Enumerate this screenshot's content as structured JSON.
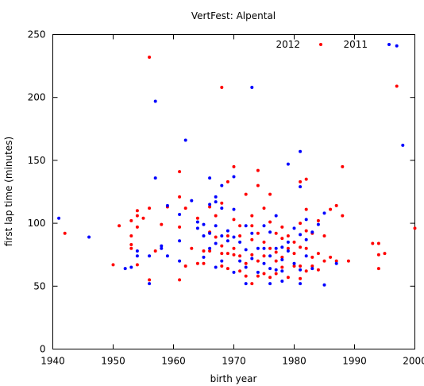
{
  "chart_data": {
    "type": "scatter",
    "title": "VertFest: Alpental",
    "xlabel": "birth year",
    "ylabel": "first lap time (minutes)",
    "xlim": [
      1940,
      2000
    ],
    "ylim": [
      0,
      250
    ],
    "xticks": [
      1940,
      1950,
      1960,
      1970,
      1980,
      1990,
      2000
    ],
    "yticks": [
      0,
      50,
      100,
      150,
      200,
      250
    ],
    "grid": false,
    "legend_position": "top-right",
    "series": [
      {
        "name": "2012",
        "color": "#ff0000",
        "points": [
          [
            1942,
            92
          ],
          [
            1950,
            67
          ],
          [
            1951,
            98
          ],
          [
            1953,
            102
          ],
          [
            1953,
            90
          ],
          [
            1953,
            80
          ],
          [
            1953,
            83
          ],
          [
            1954,
            110
          ],
          [
            1954,
            106
          ],
          [
            1954,
            97
          ],
          [
            1954,
            67
          ],
          [
            1955,
            104
          ],
          [
            1956,
            232
          ],
          [
            1956,
            112
          ],
          [
            1956,
            55
          ],
          [
            1957,
            78
          ],
          [
            1958,
            99
          ],
          [
            1959,
            113
          ],
          [
            1961,
            141
          ],
          [
            1961,
            121
          ],
          [
            1961,
            97
          ],
          [
            1961,
            55
          ],
          [
            1962,
            112
          ],
          [
            1962,
            66
          ],
          [
            1963,
            80
          ],
          [
            1964,
            104
          ],
          [
            1964,
            68
          ],
          [
            1965,
            78
          ],
          [
            1965,
            68
          ],
          [
            1966,
            113
          ],
          [
            1966,
            93
          ],
          [
            1966,
            78
          ],
          [
            1967,
            106
          ],
          [
            1967,
            89
          ],
          [
            1968,
            208
          ],
          [
            1968,
            116
          ],
          [
            1968,
            82
          ],
          [
            1968,
            76
          ],
          [
            1968,
            66
          ],
          [
            1969,
            133
          ],
          [
            1969,
            90
          ],
          [
            1969,
            76
          ],
          [
            1969,
            64
          ],
          [
            1970,
            145
          ],
          [
            1970,
            103
          ],
          [
            1970,
            80
          ],
          [
            1970,
            75
          ],
          [
            1971,
            98
          ],
          [
            1971,
            90
          ],
          [
            1971,
            74
          ],
          [
            1971,
            62
          ],
          [
            1972,
            123
          ],
          [
            1972,
            68
          ],
          [
            1972,
            58
          ],
          [
            1973,
            106
          ],
          [
            1973,
            98
          ],
          [
            1973,
            87
          ],
          [
            1973,
            75
          ],
          [
            1973,
            52
          ],
          [
            1974,
            142
          ],
          [
            1974,
            130
          ],
          [
            1974,
            92
          ],
          [
            1974,
            70
          ],
          [
            1974,
            58
          ],
          [
            1975,
            112
          ],
          [
            1975,
            85
          ],
          [
            1975,
            74
          ],
          [
            1975,
            60
          ],
          [
            1976,
            123
          ],
          [
            1976,
            101
          ],
          [
            1976,
            80
          ],
          [
            1976,
            57
          ],
          [
            1977,
            92
          ],
          [
            1977,
            77
          ],
          [
            1977,
            70
          ],
          [
            1977,
            60
          ],
          [
            1978,
            97
          ],
          [
            1978,
            88
          ],
          [
            1978,
            73
          ],
          [
            1978,
            65
          ],
          [
            1979,
            90
          ],
          [
            1979,
            80
          ],
          [
            1979,
            57
          ],
          [
            1980,
            85
          ],
          [
            1980,
            76
          ],
          [
            1980,
            66
          ],
          [
            1981,
            133
          ],
          [
            1981,
            100
          ],
          [
            1981,
            81
          ],
          [
            1981,
            66
          ],
          [
            1981,
            56
          ],
          [
            1982,
            135
          ],
          [
            1982,
            111
          ],
          [
            1982,
            94
          ],
          [
            1982,
            80
          ],
          [
            1982,
            62
          ],
          [
            1983,
            92
          ],
          [
            1983,
            73
          ],
          [
            1983,
            66
          ],
          [
            1984,
            102
          ],
          [
            1984,
            76
          ],
          [
            1984,
            63
          ],
          [
            1985,
            90
          ],
          [
            1985,
            70
          ],
          [
            1986,
            111
          ],
          [
            1986,
            73
          ],
          [
            1987,
            114
          ],
          [
            1987,
            70
          ],
          [
            1988,
            145
          ],
          [
            1988,
            106
          ],
          [
            1989,
            70
          ],
          [
            1993,
            84
          ],
          [
            1994,
            84
          ],
          [
            1994,
            75
          ],
          [
            1994,
            64
          ],
          [
            1995,
            76
          ],
          [
            1997,
            209
          ],
          [
            2000,
            96
          ]
        ]
      },
      {
        "name": "2011",
        "color": "#0000ff",
        "points": [
          [
            1941,
            104
          ],
          [
            1946,
            89
          ],
          [
            1952,
            64
          ],
          [
            1953,
            65
          ],
          [
            1954,
            78
          ],
          [
            1954,
            74
          ],
          [
            1956,
            74
          ],
          [
            1956,
            52
          ],
          [
            1957,
            197
          ],
          [
            1957,
            136
          ],
          [
            1958,
            82
          ],
          [
            1958,
            80
          ],
          [
            1959,
            114
          ],
          [
            1959,
            74
          ],
          [
            1961,
            107
          ],
          [
            1961,
            86
          ],
          [
            1961,
            70
          ],
          [
            1962,
            166
          ],
          [
            1963,
            118
          ],
          [
            1964,
            101
          ],
          [
            1964,
            96
          ],
          [
            1965,
            99
          ],
          [
            1965,
            90
          ],
          [
            1965,
            73
          ],
          [
            1966,
            136
          ],
          [
            1966,
            115
          ],
          [
            1966,
            92
          ],
          [
            1966,
            80
          ],
          [
            1967,
            121
          ],
          [
            1967,
            117
          ],
          [
            1967,
            98
          ],
          [
            1967,
            84
          ],
          [
            1967,
            65
          ],
          [
            1968,
            130
          ],
          [
            1968,
            112
          ],
          [
            1968,
            90
          ],
          [
            1968,
            70
          ],
          [
            1969,
            94
          ],
          [
            1969,
            86
          ],
          [
            1970,
            137
          ],
          [
            1970,
            111
          ],
          [
            1970,
            89
          ],
          [
            1970,
            61
          ],
          [
            1971,
            85
          ],
          [
            1971,
            70
          ],
          [
            1972,
            98
          ],
          [
            1972,
            79
          ],
          [
            1972,
            65
          ],
          [
            1972,
            52
          ],
          [
            1973,
            208
          ],
          [
            1973,
            92
          ],
          [
            1973,
            72
          ],
          [
            1974,
            80
          ],
          [
            1974,
            61
          ],
          [
            1975,
            98
          ],
          [
            1975,
            80
          ],
          [
            1975,
            68
          ],
          [
            1976,
            93
          ],
          [
            1976,
            74
          ],
          [
            1976,
            64
          ],
          [
            1976,
            52
          ],
          [
            1977,
            106
          ],
          [
            1977,
            80
          ],
          [
            1977,
            63
          ],
          [
            1978,
            81
          ],
          [
            1978,
            71
          ],
          [
            1978,
            62
          ],
          [
            1978,
            54
          ],
          [
            1979,
            147
          ],
          [
            1979,
            85
          ],
          [
            1979,
            78
          ],
          [
            1980,
            96
          ],
          [
            1980,
            68
          ],
          [
            1981,
            157
          ],
          [
            1981,
            129
          ],
          [
            1981,
            91
          ],
          [
            1981,
            63
          ],
          [
            1981,
            52
          ],
          [
            1982,
            103
          ],
          [
            1982,
            87
          ],
          [
            1982,
            74
          ],
          [
            1983,
            93
          ],
          [
            1983,
            64
          ],
          [
            1984,
            99
          ],
          [
            1985,
            108
          ],
          [
            1985,
            51
          ],
          [
            1987,
            68
          ],
          [
            1997,
            241
          ],
          [
            1998,
            162
          ]
        ]
      }
    ]
  }
}
